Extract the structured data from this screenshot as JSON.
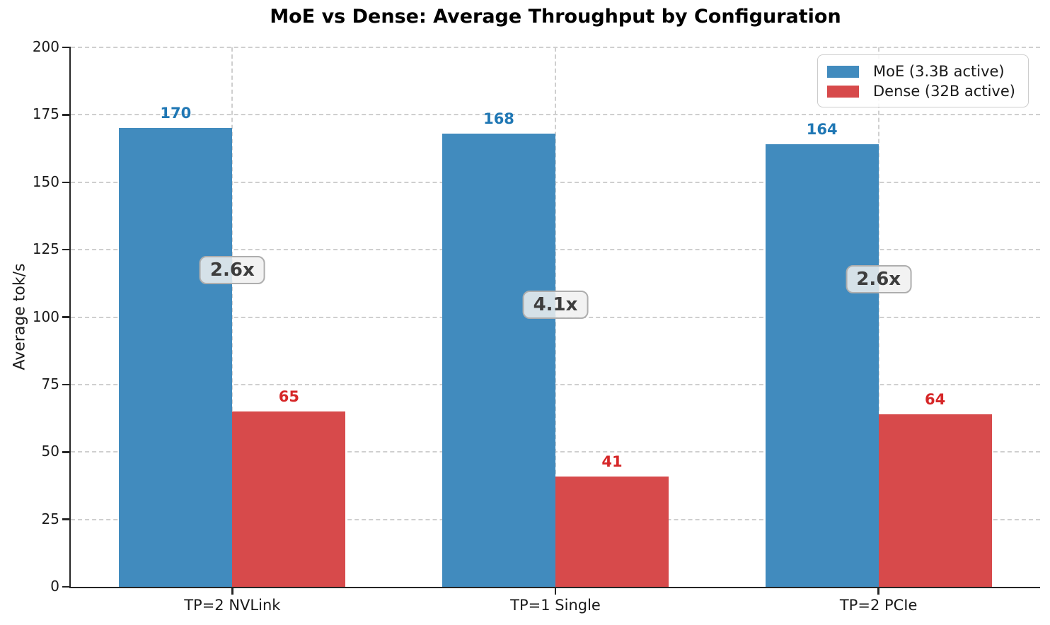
{
  "title": "MoE vs Dense: Average Throughput by Configuration",
  "chart_data": {
    "type": "bar",
    "title": "MoE vs Dense: Average Throughput by Configuration",
    "xlabel": "",
    "ylabel": "Average tok/s",
    "categories": [
      "TP=2 NVLink",
      "TP=1 Single",
      "TP=2 PCIe"
    ],
    "series": [
      {
        "name": "MoE (3.3B active)",
        "bar_color": "#418bbe",
        "label_color": "#1f77b4",
        "values": [
          170,
          168,
          164
        ]
      },
      {
        "name": "Dense (32B active)",
        "bar_color": "#d74a4b",
        "label_color": "#d62728",
        "values": [
          65,
          41,
          64
        ]
      }
    ],
    "annotations": [
      {
        "text": "2.6x",
        "category_index": 0,
        "y": 117.5
      },
      {
        "text": "4.1x",
        "category_index": 1,
        "y": 104.5
      },
      {
        "text": "2.6x",
        "category_index": 2,
        "y": 114.0
      }
    ],
    "ylim": [
      0,
      200
    ],
    "ytick_step": 25,
    "yticks": [
      0,
      25,
      50,
      75,
      100,
      125,
      150,
      175,
      200
    ],
    "grid": true,
    "grid_style": "dashed",
    "legend_position": "upper right",
    "spine_color": "#262626",
    "grid_color": "#cfcfcf"
  }
}
